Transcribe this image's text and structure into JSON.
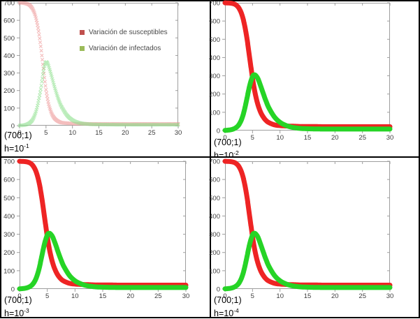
{
  "chart_data": {
    "type": "scatter",
    "description_colors": {
      "frame": "#9e9e9e",
      "tick_label": "#3d3d3d",
      "susceptibles_thick": "#ee2424",
      "infectados_thick": "#26d426",
      "susceptibles_light": "#ec9393",
      "infectados_light": "#8bdf8b"
    },
    "axis": {
      "xlim": [
        0,
        30
      ],
      "ylim": [
        0,
        700
      ],
      "xticks": [
        0,
        5,
        10,
        15,
        20,
        25,
        30
      ],
      "yticks": [
        0,
        100,
        200,
        300,
        400,
        500,
        600,
        700
      ],
      "grid": false
    },
    "legend": {
      "position": "inside-top",
      "items": [
        {
          "label": "Variación de susceptibles",
          "swatch": "#c0504d"
        },
        {
          "label": "Variación de infectados",
          "swatch": "#9bbb59"
        }
      ]
    },
    "datasets": {
      "euler_h_0_1": {
        "t": [
          0,
          0.5,
          1,
          1.5,
          2,
          2.5,
          3,
          3.5,
          4,
          4.5,
          4.75,
          5,
          5.25,
          5.5,
          6,
          6.5,
          7,
          7.5,
          8,
          9,
          10,
          11,
          12,
          13,
          14,
          16,
          20,
          25,
          30
        ],
        "susceptibles": [
          700,
          699,
          697,
          693,
          684,
          663,
          624,
          556,
          452,
          325,
          262,
          205,
          160,
          123,
          74,
          46,
          31,
          22,
          17,
          14,
          12,
          11,
          11,
          10,
          10,
          10,
          10,
          10,
          10
        ],
        "infectados": [
          1,
          2,
          4,
          9,
          18,
          36,
          71,
          128,
          208,
          310,
          345,
          362,
          358,
          340,
          288,
          233,
          182,
          139,
          105,
          58,
          32,
          19,
          12,
          9,
          7,
          6,
          5,
          5,
          5
        ]
      },
      "refined": {
        "t": [
          0,
          0.5,
          1,
          1.5,
          2,
          2.5,
          3,
          3.5,
          4,
          4.5,
          5,
          5.3,
          5.6,
          6,
          6.5,
          7,
          7.5,
          8,
          9,
          10,
          11,
          12,
          13,
          14,
          16,
          18,
          20,
          24,
          27,
          30
        ],
        "susceptibles": [
          700,
          699,
          698,
          695,
          688,
          672,
          641,
          586,
          502,
          394,
          287,
          232,
          187,
          140,
          99,
          72,
          54,
          43,
          31,
          27,
          25,
          24,
          23,
          22,
          22,
          21,
          21,
          21,
          21,
          21
        ],
        "infectados": [
          1,
          2,
          4,
          8,
          16,
          31,
          60,
          109,
          178,
          248,
          296,
          305,
          301,
          283,
          243,
          199,
          158,
          123,
          74,
          45,
          29,
          19,
          14,
          11,
          9,
          8,
          8,
          8,
          8,
          8
        ]
      }
    },
    "charts": [
      {
        "name": "top-left",
        "dataset": "euler_h_0_1",
        "style": "markers",
        "marker_step": 0.1,
        "initial_label": "(700;1)",
        "h_base": "h=10",
        "h_exp": "-1",
        "show_legend": true
      },
      {
        "name": "top-right",
        "dataset": "refined",
        "style": "thick",
        "initial_label": "(700;1)",
        "h_base": "h=10",
        "h_exp": "-2",
        "show_legend": false
      },
      {
        "name": "bottom-left",
        "dataset": "refined",
        "style": "thick",
        "initial_label": "(700;1)",
        "h_base": "h=10",
        "h_exp": "-3",
        "show_legend": false
      },
      {
        "name": "bottom-right",
        "dataset": "refined",
        "style": "thick",
        "initial_label": "(700;1)",
        "h_base": "h=10",
        "h_exp": "-4",
        "show_legend": false
      }
    ]
  }
}
